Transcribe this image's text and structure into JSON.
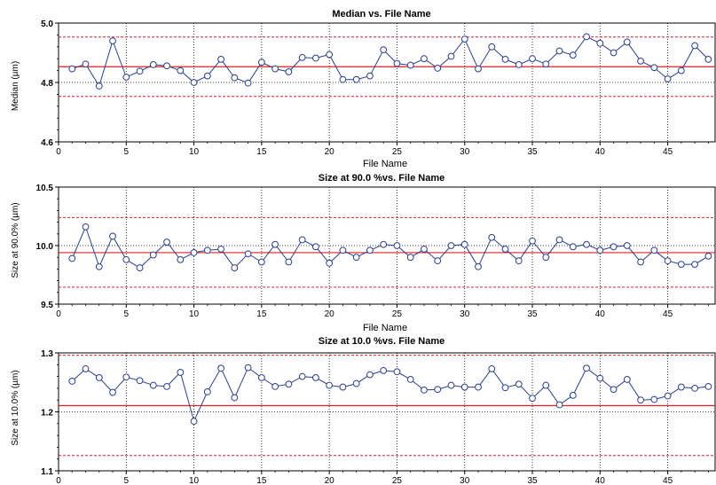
{
  "chart_data": [
    {
      "type": "line",
      "title": "Median vs. File Name",
      "xlabel": "File Name",
      "ylabel": "Median (µm)",
      "xlim": [
        0,
        48.5
      ],
      "ylim": [
        4.6,
        5.0
      ],
      "xticks": [
        0,
        5,
        10,
        15,
        20,
        25,
        30,
        35,
        40,
        45
      ],
      "yticks": [
        4.6,
        4.8,
        5.0
      ],
      "ytick_labels": [
        "4.6",
        "4.8",
        "5.0"
      ],
      "grid": true,
      "reference_lines": {
        "mean": 4.853,
        "upper": 4.953,
        "lower": 4.753
      },
      "series": [
        {
          "x": [
            1,
            2,
            3,
            4,
            5,
            6,
            7,
            8,
            9,
            10,
            11,
            12,
            13,
            14,
            15,
            16,
            17,
            18,
            19,
            20,
            21,
            22,
            23,
            24,
            25,
            26,
            27,
            28,
            29,
            30,
            31,
            32,
            33,
            34,
            35,
            36,
            37,
            38,
            39,
            40,
            41,
            42,
            43,
            44,
            45,
            46,
            47,
            48
          ],
          "values": [
            4.846,
            4.862,
            4.788,
            4.94,
            4.818,
            4.838,
            4.86,
            4.856,
            4.84,
            4.8,
            4.822,
            4.878,
            4.816,
            4.798,
            4.868,
            4.846,
            4.836,
            4.884,
            4.882,
            4.894,
            4.81,
            4.81,
            4.822,
            4.91,
            4.864,
            4.858,
            4.88,
            4.848,
            4.888,
            4.946,
            4.846,
            4.92,
            4.878,
            4.86,
            4.88,
            4.862,
            4.906,
            4.892,
            4.954,
            4.932,
            4.9,
            4.936,
            4.872,
            4.85,
            4.812,
            4.84,
            4.924,
            4.878
          ],
          "color": "#2a3f8f"
        }
      ]
    },
    {
      "type": "line",
      "title": "Size at  90.0 %vs. File Name",
      "xlabel": "File Name",
      "ylabel": "Size at 90.0% (µm)",
      "xlim": [
        0,
        48.5
      ],
      "ylim": [
        9.5,
        10.5
      ],
      "xticks": [
        0,
        5,
        10,
        15,
        20,
        25,
        30,
        35,
        40,
        45
      ],
      "yticks": [
        9.5,
        10.0,
        10.5
      ],
      "ytick_labels": [
        "9.5",
        "10.0",
        "10.5"
      ],
      "grid": true,
      "reference_lines": {
        "mean": 9.94,
        "upper": 10.24,
        "lower": 9.645
      },
      "series": [
        {
          "x": [
            1,
            2,
            3,
            4,
            5,
            6,
            7,
            8,
            9,
            10,
            11,
            12,
            13,
            14,
            15,
            16,
            17,
            18,
            19,
            20,
            21,
            22,
            23,
            24,
            25,
            26,
            27,
            28,
            29,
            30,
            31,
            32,
            33,
            34,
            35,
            36,
            37,
            38,
            39,
            40,
            41,
            42,
            43,
            44,
            45,
            46,
            47,
            48
          ],
          "values": [
            9.89,
            10.16,
            9.82,
            10.08,
            9.88,
            9.81,
            9.92,
            10.03,
            9.88,
            9.94,
            9.96,
            9.97,
            9.81,
            9.93,
            9.86,
            10.01,
            9.86,
            10.05,
            9.99,
            9.85,
            9.96,
            9.9,
            9.96,
            10.01,
            10.0,
            9.9,
            9.97,
            9.87,
            10.0,
            10.01,
            9.82,
            10.07,
            9.97,
            9.87,
            10.04,
            9.9,
            10.05,
            9.99,
            10.01,
            9.96,
            9.99,
            10.0,
            9.86,
            9.96,
            9.87,
            9.84,
            9.84,
            9.91
          ],
          "color": "#2a3f8f"
        }
      ]
    },
    {
      "type": "line",
      "title": "Size at  10.0 %vs. File Name",
      "xlabel": "",
      "ylabel": "Size at 10.0% (µm)",
      "xlim": [
        0,
        48.5
      ],
      "ylim": [
        1.1,
        1.3
      ],
      "xticks": [
        0,
        5,
        10,
        15,
        20,
        25,
        30,
        35,
        40,
        45
      ],
      "yticks": [
        1.1,
        1.2,
        1.3
      ],
      "ytick_labels": [
        "1.1",
        "1.2",
        "1.3"
      ],
      "grid": true,
      "reference_lines": {
        "mean": 1.2105,
        "upper": 1.296,
        "lower": 1.126
      },
      "series": [
        {
          "x": [
            1,
            2,
            3,
            4,
            5,
            6,
            7,
            8,
            9,
            10,
            11,
            12,
            13,
            14,
            15,
            16,
            17,
            18,
            19,
            20,
            21,
            22,
            23,
            24,
            25,
            26,
            27,
            28,
            29,
            30,
            31,
            32,
            33,
            34,
            35,
            36,
            37,
            38,
            39,
            40,
            41,
            42,
            43,
            44,
            45,
            46,
            47,
            48
          ],
          "values": [
            1.252,
            1.273,
            1.258,
            1.233,
            1.259,
            1.253,
            1.245,
            1.243,
            1.267,
            1.184,
            1.234,
            1.274,
            1.224,
            1.275,
            1.258,
            1.243,
            1.247,
            1.26,
            1.258,
            1.245,
            1.242,
            1.248,
            1.263,
            1.27,
            1.268,
            1.255,
            1.237,
            1.238,
            1.245,
            1.242,
            1.242,
            1.273,
            1.241,
            1.247,
            1.223,
            1.245,
            1.212,
            1.228,
            1.274,
            1.257,
            1.238,
            1.255,
            1.22,
            1.221,
            1.227,
            1.242,
            1.24,
            1.243
          ],
          "color": "#2a3f8f"
        }
      ]
    }
  ]
}
